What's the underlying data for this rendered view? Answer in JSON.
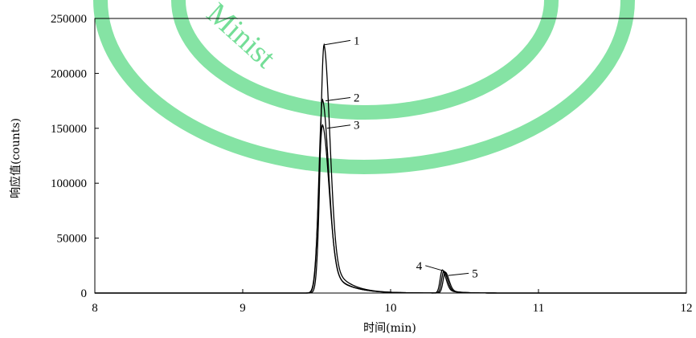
{
  "chart_data": {
    "type": "line",
    "xlabel": "时间(min)",
    "ylabel": "响应值(counts)",
    "xlim": [
      8,
      12
    ],
    "ylim": [
      0,
      250000
    ],
    "x_ticks": [
      "8",
      "9",
      "10",
      "11",
      "12"
    ],
    "y_ticks": [
      "0",
      "50000",
      "100000",
      "150000",
      "200000",
      "250000"
    ],
    "grid": false,
    "series": [
      {
        "label": "1",
        "peaks": [
          {
            "rt": 9.55,
            "height": 226000,
            "width": 0.045
          },
          {
            "rt": 10.35,
            "height": 21000,
            "width": 0.028
          }
        ]
      },
      {
        "label": "2",
        "peaks": [
          {
            "rt": 9.54,
            "height": 176000,
            "width": 0.047
          },
          {
            "rt": 10.36,
            "height": 20000,
            "width": 0.028
          }
        ]
      },
      {
        "label": "3",
        "peaks": [
          {
            "rt": 9.54,
            "height": 153000,
            "width": 0.05
          },
          {
            "rt": 10.37,
            "height": 19000,
            "width": 0.028
          }
        ]
      }
    ],
    "annotations": [
      {
        "text": "1",
        "x": 9.55,
        "y": 226000,
        "tx": 9.75,
        "ty": 230000
      },
      {
        "text": "2",
        "x": 9.56,
        "y": 175000,
        "tx": 9.75,
        "ty": 178000
      },
      {
        "text": "3",
        "x": 9.57,
        "y": 150000,
        "tx": 9.75,
        "ty": 153000
      },
      {
        "text": "4",
        "x": 10.35,
        "y": 20500,
        "tx": 10.17,
        "ty": 25000
      },
      {
        "text": "5",
        "x": 10.39,
        "y": 16000,
        "tx": 10.55,
        "ty": 18000
      }
    ]
  },
  "watermark": {
    "text": "Minist",
    "color": "#5cd985"
  }
}
